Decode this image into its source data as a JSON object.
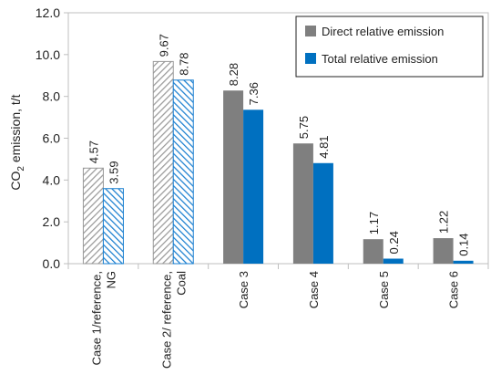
{
  "chart_data": {
    "type": "bar",
    "categories": [
      [
        "Case 1/reference,",
        "NG"
      ],
      [
        "Case 2/ reference,",
        "Coal"
      ],
      [
        "Case 3"
      ],
      [
        "Case 4"
      ],
      [
        "Case 5"
      ],
      [
        "Case 6"
      ]
    ],
    "series": [
      {
        "name": "Direct relative emission",
        "values": [
          4.57,
          9.67,
          8.28,
          5.75,
          1.17,
          1.22
        ],
        "labels": [
          "4.57",
          "9.67",
          "8.28",
          "5.75",
          "1.17",
          "1.22"
        ],
        "color": "#7f7f7f",
        "hatched": [
          true,
          true,
          false,
          false,
          false,
          false
        ]
      },
      {
        "name": "Total relative emission",
        "values": [
          3.59,
          8.78,
          7.36,
          4.81,
          0.24,
          0.14
        ],
        "labels": [
          "3.59",
          "8.78",
          "7.36",
          "4.81",
          "0.24",
          "0.14"
        ],
        "color": "#0070c0",
        "hatched": [
          true,
          true,
          false,
          false,
          false,
          false
        ]
      }
    ],
    "ylabel": {
      "prefix": "CO",
      "subscript": "2",
      "suffix": " emission, t/t"
    },
    "ylim": [
      0,
      12
    ],
    "yticks": [
      "0.0",
      "2.0",
      "4.0",
      "6.0",
      "8.0",
      "10.0",
      "12.0"
    ],
    "grid": false,
    "legend_position": "top-right",
    "hatch_color_direct": "#9a9a9a",
    "hatch_color_total": "#1a7fd0"
  }
}
